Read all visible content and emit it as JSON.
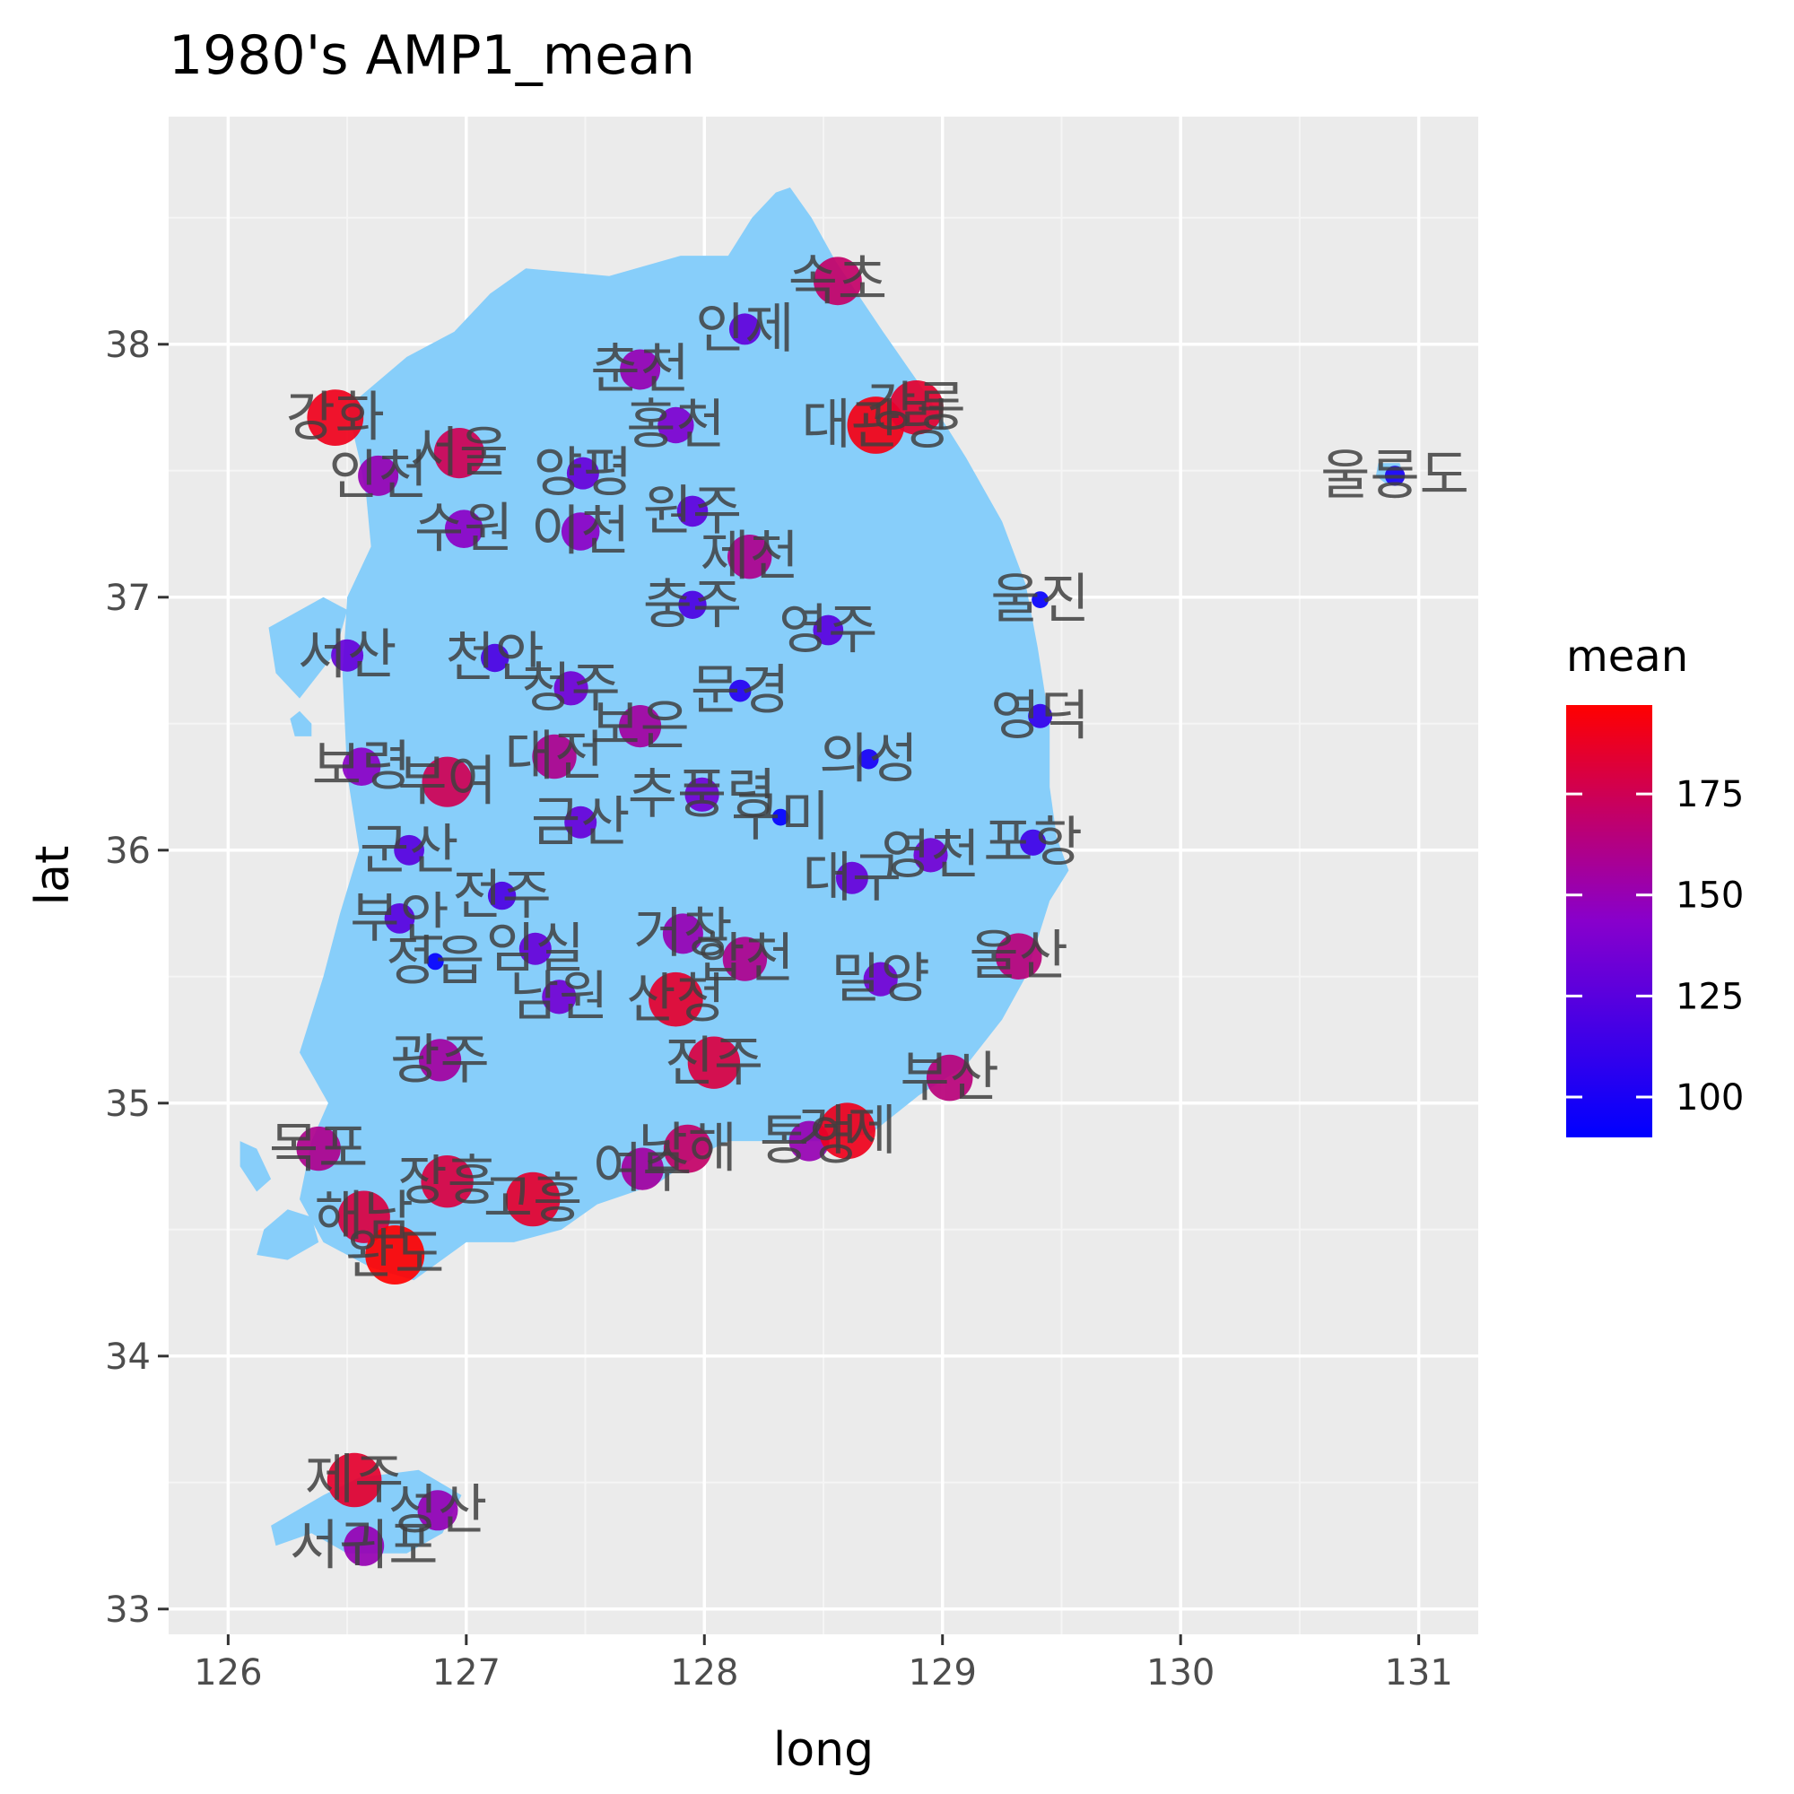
{
  "chart_data": {
    "type": "scatter",
    "title": "1980's AMP1_mean",
    "xlabel": "long",
    "ylabel": "lat",
    "xlim": [
      125.75,
      131.25
    ],
    "ylim": [
      32.9,
      38.9
    ],
    "x_ticks": [
      126,
      127,
      128,
      129,
      130,
      131
    ],
    "y_ticks": [
      33,
      34,
      35,
      36,
      37,
      38
    ],
    "grid": true,
    "legend": {
      "title": "mean",
      "placement": "right",
      "range": [
        90,
        197
      ],
      "ticks": [
        100,
        125,
        150,
        175
      ],
      "color_low": "#0000ff",
      "color_mid": "#8800cc",
      "color_high": "#ff0000"
    },
    "colors": {
      "panel": "#ebebeb",
      "grid_major": "#ffffff",
      "land": "#87cefa",
      "label": "#404040"
    },
    "land": [
      [
        [
          128.36,
          38.62
        ],
        [
          128.45,
          38.5
        ],
        [
          128.55,
          38.33
        ],
        [
          128.75,
          38.05
        ],
        [
          128.92,
          37.82
        ],
        [
          129.1,
          37.55
        ],
        [
          129.25,
          37.3
        ],
        [
          129.35,
          37.05
        ],
        [
          129.4,
          36.8
        ],
        [
          129.45,
          36.5
        ],
        [
          129.45,
          36.25
        ],
        [
          129.48,
          36.05
        ],
        [
          129.53,
          35.92
        ],
        [
          129.45,
          35.8
        ],
        [
          129.35,
          35.5
        ],
        [
          129.25,
          35.33
        ],
        [
          129.1,
          35.15
        ],
        [
          128.9,
          35.03
        ],
        [
          128.7,
          34.88
        ],
        [
          128.5,
          34.85
        ],
        [
          128.3,
          34.85
        ],
        [
          128.1,
          34.85
        ],
        [
          127.95,
          34.78
        ],
        [
          127.8,
          34.68
        ],
        [
          127.55,
          34.6
        ],
        [
          127.4,
          34.5
        ],
        [
          127.2,
          34.45
        ],
        [
          127.0,
          34.45
        ],
        [
          126.78,
          34.3
        ],
        [
          126.6,
          34.35
        ],
        [
          126.4,
          34.45
        ],
        [
          126.3,
          34.62
        ],
        [
          126.35,
          34.85
        ],
        [
          126.42,
          35.0
        ],
        [
          126.3,
          35.2
        ],
        [
          126.4,
          35.5
        ],
        [
          126.47,
          35.75
        ],
        [
          126.55,
          36.0
        ],
        [
          126.5,
          36.3
        ],
        [
          126.48,
          36.7
        ],
        [
          126.5,
          37.0
        ],
        [
          126.6,
          37.2
        ],
        [
          126.58,
          37.4
        ],
        [
          126.55,
          37.55
        ],
        [
          126.5,
          37.75
        ],
        [
          126.75,
          37.95
        ],
        [
          126.95,
          38.05
        ],
        [
          127.1,
          38.2
        ],
        [
          127.25,
          38.3
        ],
        [
          127.6,
          38.27
        ],
        [
          127.9,
          38.35
        ],
        [
          128.1,
          38.35
        ],
        [
          128.2,
          38.5
        ],
        [
          128.3,
          38.6
        ]
      ],
      [
        [
          126.17,
          36.88
        ],
        [
          126.4,
          37.0
        ],
        [
          126.5,
          36.95
        ],
        [
          126.45,
          36.78
        ],
        [
          126.3,
          36.6
        ],
        [
          126.2,
          36.7
        ]
      ],
      [
        [
          126.35,
          33.3
        ],
        [
          126.5,
          33.22
        ],
        [
          126.75,
          33.22
        ],
        [
          126.9,
          33.3
        ],
        [
          126.98,
          33.45
        ],
        [
          126.8,
          33.55
        ],
        [
          126.55,
          33.52
        ],
        [
          126.4,
          33.45
        ],
        [
          126.18,
          33.33
        ],
        [
          126.2,
          33.25
        ]
      ],
      [
        [
          126.25,
          34.58
        ],
        [
          126.35,
          34.55
        ],
        [
          126.38,
          34.45
        ],
        [
          126.25,
          34.38
        ],
        [
          126.12,
          34.4
        ],
        [
          126.15,
          34.5
        ]
      ],
      [
        [
          126.05,
          34.85
        ],
        [
          126.12,
          34.82
        ],
        [
          126.18,
          34.7
        ],
        [
          126.12,
          34.65
        ],
        [
          126.05,
          34.75
        ]
      ],
      [
        [
          126.3,
          36.55
        ],
        [
          126.35,
          36.5
        ],
        [
          126.35,
          36.45
        ],
        [
          126.28,
          36.45
        ],
        [
          126.26,
          36.52
        ]
      ],
      [
        [
          130.83,
          37.53
        ],
        [
          130.92,
          37.53
        ],
        [
          130.94,
          37.47
        ],
        [
          130.86,
          37.45
        ],
        [
          130.82,
          37.48
        ]
      ]
    ],
    "stations": [
      {
        "name": "속초",
        "x": 128.56,
        "y": 38.25,
        "mean": 170
      },
      {
        "name": "인제",
        "x": 128.17,
        "y": 38.06,
        "mean": 128
      },
      {
        "name": "춘천",
        "x": 127.73,
        "y": 37.9,
        "mean": 150
      },
      {
        "name": "강화",
        "x": 126.45,
        "y": 37.71,
        "mean": 190
      },
      {
        "name": "홍천",
        "x": 127.88,
        "y": 37.68,
        "mean": 140
      },
      {
        "name": "대관령",
        "x": 128.72,
        "y": 37.68,
        "mean": 192
      },
      {
        "name": "강릉",
        "x": 128.89,
        "y": 37.75,
        "mean": 185
      },
      {
        "name": "울릉도",
        "x": 130.9,
        "y": 37.48,
        "mean": 100
      },
      {
        "name": "인천",
        "x": 126.63,
        "y": 37.48,
        "mean": 150
      },
      {
        "name": "서울",
        "x": 126.97,
        "y": 37.57,
        "mean": 175
      },
      {
        "name": "양평",
        "x": 127.49,
        "y": 37.49,
        "mean": 130
      },
      {
        "name": "원주",
        "x": 127.95,
        "y": 37.34,
        "mean": 127
      },
      {
        "name": "수원",
        "x": 126.99,
        "y": 37.27,
        "mean": 145
      },
      {
        "name": "이천",
        "x": 127.48,
        "y": 37.26,
        "mean": 145
      },
      {
        "name": "제천",
        "x": 128.19,
        "y": 37.16,
        "mean": 160
      },
      {
        "name": "울진",
        "x": 129.41,
        "y": 36.99,
        "mean": 92
      },
      {
        "name": "충주",
        "x": 127.95,
        "y": 36.97,
        "mean": 120
      },
      {
        "name": "영주",
        "x": 128.52,
        "y": 36.87,
        "mean": 125
      },
      {
        "name": "서산",
        "x": 126.5,
        "y": 36.77,
        "mean": 130
      },
      {
        "name": "천안",
        "x": 127.12,
        "y": 36.76,
        "mean": 120
      },
      {
        "name": "청주",
        "x": 127.44,
        "y": 36.64,
        "mean": 135
      },
      {
        "name": "문경",
        "x": 128.15,
        "y": 36.63,
        "mean": 105
      },
      {
        "name": "영덕",
        "x": 129.41,
        "y": 36.53,
        "mean": 110
      },
      {
        "name": "보은",
        "x": 127.73,
        "y": 36.49,
        "mean": 155
      },
      {
        "name": "대전",
        "x": 127.37,
        "y": 36.37,
        "mean": 160
      },
      {
        "name": "보령",
        "x": 126.56,
        "y": 36.33,
        "mean": 145
      },
      {
        "name": "부여",
        "x": 126.92,
        "y": 36.27,
        "mean": 175
      },
      {
        "name": "의성",
        "x": 128.69,
        "y": 36.36,
        "mean": 100
      },
      {
        "name": "추풍령",
        "x": 127.99,
        "y": 36.22,
        "mean": 135
      },
      {
        "name": "구미",
        "x": 128.32,
        "y": 36.13,
        "mean": 92
      },
      {
        "name": "금산",
        "x": 127.48,
        "y": 36.11,
        "mean": 130
      },
      {
        "name": "포항",
        "x": 129.38,
        "y": 36.03,
        "mean": 115
      },
      {
        "name": "군산",
        "x": 126.76,
        "y": 36.0,
        "mean": 125
      },
      {
        "name": "영천",
        "x": 128.95,
        "y": 35.98,
        "mean": 135
      },
      {
        "name": "대구",
        "x": 128.62,
        "y": 35.89,
        "mean": 130
      },
      {
        "name": "전주",
        "x": 127.15,
        "y": 35.82,
        "mean": 120
      },
      {
        "name": "부안",
        "x": 126.72,
        "y": 35.73,
        "mean": 125
      },
      {
        "name": "거창",
        "x": 127.91,
        "y": 35.67,
        "mean": 150
      },
      {
        "name": "임실",
        "x": 127.29,
        "y": 35.61,
        "mean": 130
      },
      {
        "name": "정읍",
        "x": 126.87,
        "y": 35.56,
        "mean": 92
      },
      {
        "name": "합천",
        "x": 128.17,
        "y": 35.57,
        "mean": 160
      },
      {
        "name": "울산",
        "x": 129.32,
        "y": 35.58,
        "mean": 165
      },
      {
        "name": "밀양",
        "x": 128.74,
        "y": 35.49,
        "mean": 135
      },
      {
        "name": "남원",
        "x": 127.39,
        "y": 35.42,
        "mean": 135
      },
      {
        "name": "산청",
        "x": 127.88,
        "y": 35.41,
        "mean": 185
      },
      {
        "name": "광주",
        "x": 126.89,
        "y": 35.17,
        "mean": 155
      },
      {
        "name": "진주",
        "x": 128.04,
        "y": 35.16,
        "mean": 180
      },
      {
        "name": "부산",
        "x": 129.03,
        "y": 35.1,
        "mean": 165
      },
      {
        "name": "목포",
        "x": 126.38,
        "y": 34.82,
        "mean": 160
      },
      {
        "name": "여수",
        "x": 127.74,
        "y": 34.74,
        "mean": 155
      },
      {
        "name": "남해",
        "x": 127.93,
        "y": 34.82,
        "mean": 170
      },
      {
        "name": "통영",
        "x": 128.44,
        "y": 34.85,
        "mean": 150
      },
      {
        "name": "거제",
        "x": 128.6,
        "y": 34.89,
        "mean": 190
      },
      {
        "name": "장흥",
        "x": 126.92,
        "y": 34.69,
        "mean": 180
      },
      {
        "name": "고흥",
        "x": 127.28,
        "y": 34.62,
        "mean": 185
      },
      {
        "name": "해남",
        "x": 126.57,
        "y": 34.55,
        "mean": 180
      },
      {
        "name": "완도",
        "x": 126.7,
        "y": 34.4,
        "mean": 197
      },
      {
        "name": "제주",
        "x": 126.53,
        "y": 33.51,
        "mean": 185
      },
      {
        "name": "성산",
        "x": 126.88,
        "y": 33.39,
        "mean": 150
      },
      {
        "name": "서귀포",
        "x": 126.57,
        "y": 33.25,
        "mean": 150
      }
    ]
  }
}
